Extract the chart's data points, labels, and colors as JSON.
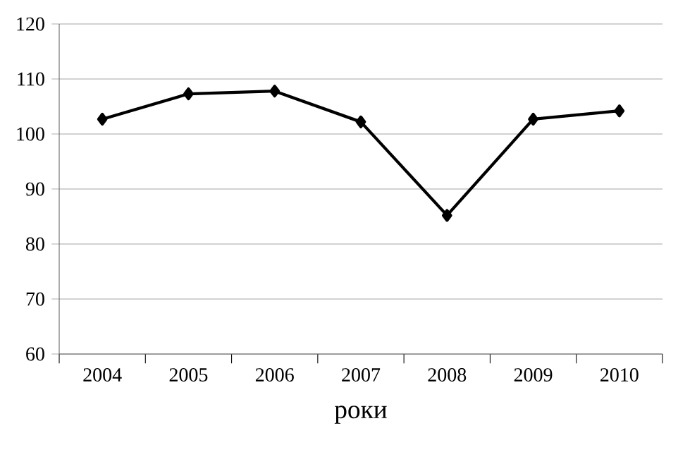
{
  "chart_data": {
    "type": "line",
    "xlabel": "роки",
    "categories": [
      "2004",
      "2005",
      "2006",
      "2007",
      "2008",
      "2009",
      "2010"
    ],
    "series": [
      {
        "color": "#000000",
        "values": [
          102.7,
          107.3,
          107.8,
          102.2,
          85.2,
          102.7,
          104.2
        ]
      }
    ],
    "ylim": [
      60,
      120
    ],
    "yticks": [
      60,
      70,
      80,
      90,
      100,
      110,
      120
    ],
    "grid": "y",
    "marker": "diamond",
    "line_style": "solid"
  }
}
